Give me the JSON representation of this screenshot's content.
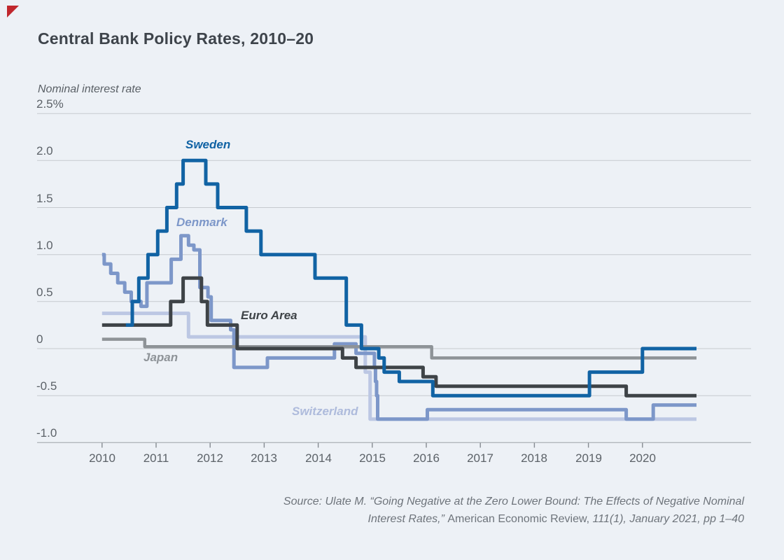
{
  "figure": {
    "title": "Central Bank Policy Rates, 2010–20",
    "y_axis_title": "Nominal interest rate",
    "accent_color": "#c0272d"
  },
  "source": {
    "line1": "Source: Ulate M. “Going Negative at the Zero Lower Bound: The Effects of Negative Nominal",
    "line2_italic_prefix": "Interest Rates,” ",
    "line2_roman": "American Economic Review, ",
    "line2_italic_suffix": "111(1), January 2021, pp 1–40"
  },
  "chart_data": {
    "type": "line",
    "line_style": "step-after",
    "title": "Central Bank Policy Rates, 2010–20",
    "ylabel": "Nominal interest rate",
    "y_unit": "%",
    "xlim": [
      2010,
      2021
    ],
    "ylim": [
      -1.0,
      2.5
    ],
    "grid": true,
    "legend_position": "inline-labels",
    "x_ticks": [
      2010,
      2011,
      2012,
      2013,
      2014,
      2015,
      2016,
      2017,
      2018,
      2019,
      2020
    ],
    "y_ticks": [
      {
        "label": "2.5%",
        "value": 2.5
      },
      {
        "label": "2.0",
        "value": 2.0
      },
      {
        "label": "1.5",
        "value": 1.5
      },
      {
        "label": "1.0",
        "value": 1.0
      },
      {
        "label": "0.5",
        "value": 0.5
      },
      {
        "label": "0",
        "value": 0.0
      },
      {
        "label": "-0.5",
        "value": -0.5
      },
      {
        "label": "-1.0",
        "value": -1.0
      }
    ],
    "series": [
      {
        "name": "Switzerland",
        "color": "#bcc7e3",
        "points": [
          [
            2010.0,
            0.375
          ],
          [
            2011.6,
            0.125
          ],
          [
            2014.87,
            -0.25
          ],
          [
            2014.96,
            -0.75
          ],
          [
            2021.0,
            -0.75
          ]
        ]
      },
      {
        "name": "Denmark",
        "color": "#7d97c9",
        "points": [
          [
            2010.0,
            1.0
          ],
          [
            2010.04,
            0.9
          ],
          [
            2010.16,
            0.8
          ],
          [
            2010.29,
            0.7
          ],
          [
            2010.42,
            0.6
          ],
          [
            2010.54,
            0.5
          ],
          [
            2010.72,
            0.45
          ],
          [
            2010.83,
            0.7
          ],
          [
            2011.28,
            0.95
          ],
          [
            2011.46,
            1.2
          ],
          [
            2011.6,
            1.1
          ],
          [
            2011.7,
            1.05
          ],
          [
            2011.81,
            0.65
          ],
          [
            2011.96,
            0.55
          ],
          [
            2012.02,
            0.3
          ],
          [
            2012.38,
            0.2
          ],
          [
            2012.44,
            -0.2
          ],
          [
            2013.06,
            -0.1
          ],
          [
            2014.3,
            0.05
          ],
          [
            2014.7,
            -0.05
          ],
          [
            2015.04,
            -0.2
          ],
          [
            2015.06,
            -0.35
          ],
          [
            2015.08,
            -0.5
          ],
          [
            2015.1,
            -0.75
          ],
          [
            2016.02,
            -0.65
          ],
          [
            2019.7,
            -0.75
          ],
          [
            2020.2,
            -0.6
          ],
          [
            2021.0,
            -0.6
          ]
        ]
      },
      {
        "name": "Japan",
        "color": "#8e9397",
        "points": [
          [
            2010.0,
            0.1
          ],
          [
            2010.79,
            0.02
          ],
          [
            2016.1,
            -0.1
          ],
          [
            2021.0,
            -0.1
          ]
        ]
      },
      {
        "name": "Euro Area",
        "color": "#3e4347",
        "points": [
          [
            2010.0,
            0.25
          ],
          [
            2011.27,
            0.5
          ],
          [
            2011.5,
            0.75
          ],
          [
            2011.84,
            0.5
          ],
          [
            2011.95,
            0.25
          ],
          [
            2012.5,
            0.0
          ],
          [
            2014.45,
            -0.1
          ],
          [
            2014.7,
            -0.2
          ],
          [
            2015.94,
            -0.3
          ],
          [
            2016.18,
            -0.4
          ],
          [
            2019.7,
            -0.5
          ],
          [
            2021.0,
            -0.5
          ]
        ]
      },
      {
        "name": "Sweden",
        "color": "#1163a4",
        "points": [
          [
            2010.44,
            0.25
          ],
          [
            2010.56,
            0.5
          ],
          [
            2010.68,
            0.75
          ],
          [
            2010.85,
            1.0
          ],
          [
            2011.03,
            1.25
          ],
          [
            2011.2,
            1.5
          ],
          [
            2011.38,
            1.75
          ],
          [
            2011.5,
            2.0
          ],
          [
            2011.92,
            1.75
          ],
          [
            2012.14,
            1.5
          ],
          [
            2012.67,
            1.25
          ],
          [
            2012.94,
            1.0
          ],
          [
            2013.94,
            0.75
          ],
          [
            2014.52,
            0.25
          ],
          [
            2014.8,
            0.0
          ],
          [
            2015.12,
            -0.1
          ],
          [
            2015.22,
            -0.25
          ],
          [
            2015.5,
            -0.35
          ],
          [
            2016.12,
            -0.5
          ],
          [
            2019.02,
            -0.25
          ],
          [
            2020.0,
            0.0
          ],
          [
            2021.0,
            0.0
          ]
        ]
      }
    ]
  }
}
